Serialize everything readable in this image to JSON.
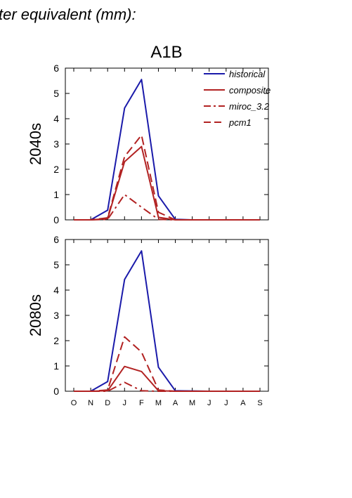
{
  "header_text": "ter equivalent (mm):",
  "figure_title": "A1B",
  "colors": {
    "historical": "#1a1aaa",
    "scenario": "#b22222"
  },
  "chart_data": [
    {
      "type": "line",
      "ylabel": "2040s",
      "ylim": [
        0,
        6
      ],
      "yticks": [
        0,
        1,
        2,
        3,
        4,
        5,
        6
      ],
      "categories": [
        "O",
        "N",
        "D",
        "J",
        "F",
        "M",
        "A",
        "M",
        "J",
        "J",
        "A",
        "S"
      ],
      "show_xticklabels": false,
      "legend": "top-right",
      "series": [
        {
          "name": "historical",
          "style": "solid",
          "color": "#1a1aaa",
          "values": [
            0,
            0,
            0.38,
            4.42,
            5.55,
            0.95,
            0.02,
            0,
            0,
            0,
            0,
            0
          ]
        },
        {
          "name": "composite",
          "style": "solid",
          "color": "#b22222",
          "values": [
            0,
            0,
            0.05,
            2.3,
            2.9,
            0.1,
            0,
            0,
            0,
            0,
            0,
            0
          ]
        },
        {
          "name": "miroc_3.2",
          "style": "dashdot",
          "color": "#b22222",
          "values": [
            0,
            0,
            0.02,
            1.0,
            0.5,
            0.02,
            0,
            0,
            0,
            0,
            0,
            0
          ]
        },
        {
          "name": "pcm1",
          "style": "dash",
          "color": "#b22222",
          "values": [
            0,
            0,
            0.08,
            2.5,
            3.35,
            0.3,
            0,
            0,
            0,
            0,
            0,
            0
          ]
        }
      ]
    },
    {
      "type": "line",
      "ylabel": "2080s",
      "ylim": [
        0,
        6
      ],
      "yticks": [
        0,
        1,
        2,
        3,
        4,
        5,
        6
      ],
      "categories": [
        "O",
        "N",
        "D",
        "J",
        "F",
        "M",
        "A",
        "M",
        "J",
        "J",
        "A",
        "S"
      ],
      "show_xticklabels": true,
      "series": [
        {
          "name": "historical",
          "style": "solid",
          "color": "#1a1aaa",
          "values": [
            0,
            0,
            0.38,
            4.42,
            5.55,
            0.95,
            0.02,
            0.01,
            0,
            0,
            0,
            0
          ]
        },
        {
          "name": "composite",
          "style": "solid",
          "color": "#b22222",
          "values": [
            0,
            0,
            0.02,
            0.98,
            0.78,
            0.02,
            0,
            0,
            0,
            0,
            0,
            0
          ]
        },
        {
          "name": "miroc_3.2",
          "style": "dashdot",
          "color": "#b22222",
          "values": [
            0,
            0,
            0,
            0.35,
            0.02,
            0,
            0,
            0,
            0,
            0,
            0,
            0
          ]
        },
        {
          "name": "pcm1",
          "style": "dash",
          "color": "#b22222",
          "values": [
            0,
            0,
            0.05,
            2.15,
            1.55,
            0.05,
            0,
            0,
            0,
            0,
            0,
            0
          ]
        }
      ]
    }
  ]
}
